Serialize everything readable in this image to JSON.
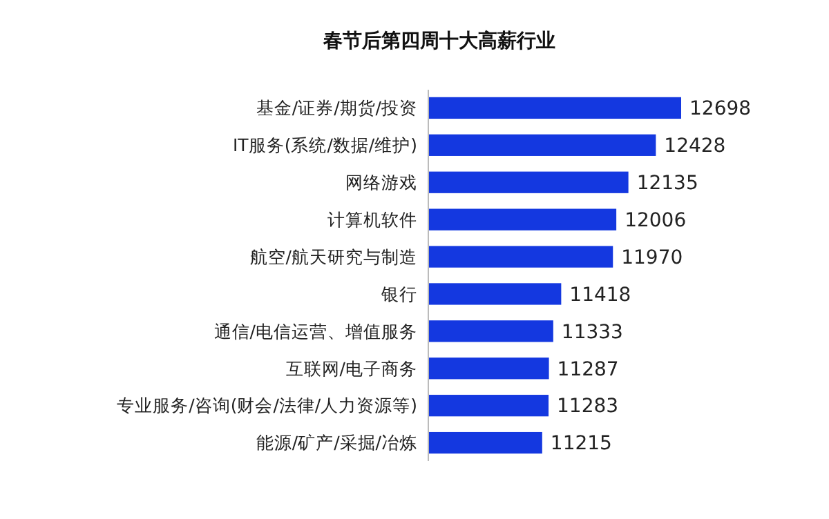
{
  "chart_data": {
    "type": "bar",
    "orientation": "horizontal",
    "title": "春节后第四周十大高薪行业",
    "categories": [
      "基金/证券/期货/投资",
      "IT服务(系统/数据/维护)",
      "网络游戏",
      "计算机软件",
      "航空/航天研究与制造",
      "银行",
      "通信/电信运营、增值服务",
      "互联网/电子商务",
      "专业服务/咨询(财会/法律/人力资源等)",
      "能源/矿产/采掘/冶炼"
    ],
    "values": [
      12698,
      12428,
      12135,
      12006,
      11970,
      11418,
      11333,
      11287,
      11283,
      11215
    ],
    "color": "#1438e0",
    "xlim": [
      10000,
      12698
    ],
    "tick_labels": "y",
    "data_labels": true
  }
}
